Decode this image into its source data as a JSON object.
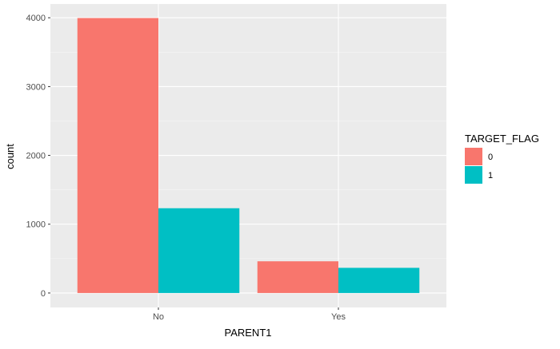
{
  "chart_data": {
    "type": "bar",
    "categories": [
      "No",
      "Yes"
    ],
    "series": [
      {
        "name": "0",
        "values": [
          3996,
          461
        ],
        "color": "#F8766D"
      },
      {
        "name": "1",
        "values": [
          1232,
          366
        ],
        "color": "#00BFC4"
      }
    ],
    "xlabel": "PARENT1",
    "ylabel": "count",
    "ylim": [
      -210,
      4200
    ],
    "yticks": [
      0,
      1000,
      2000,
      3000,
      4000
    ],
    "legend": {
      "title": "TARGET_FLAG",
      "position": "right"
    },
    "panel_color": "#EBEBEB",
    "grid": true
  }
}
